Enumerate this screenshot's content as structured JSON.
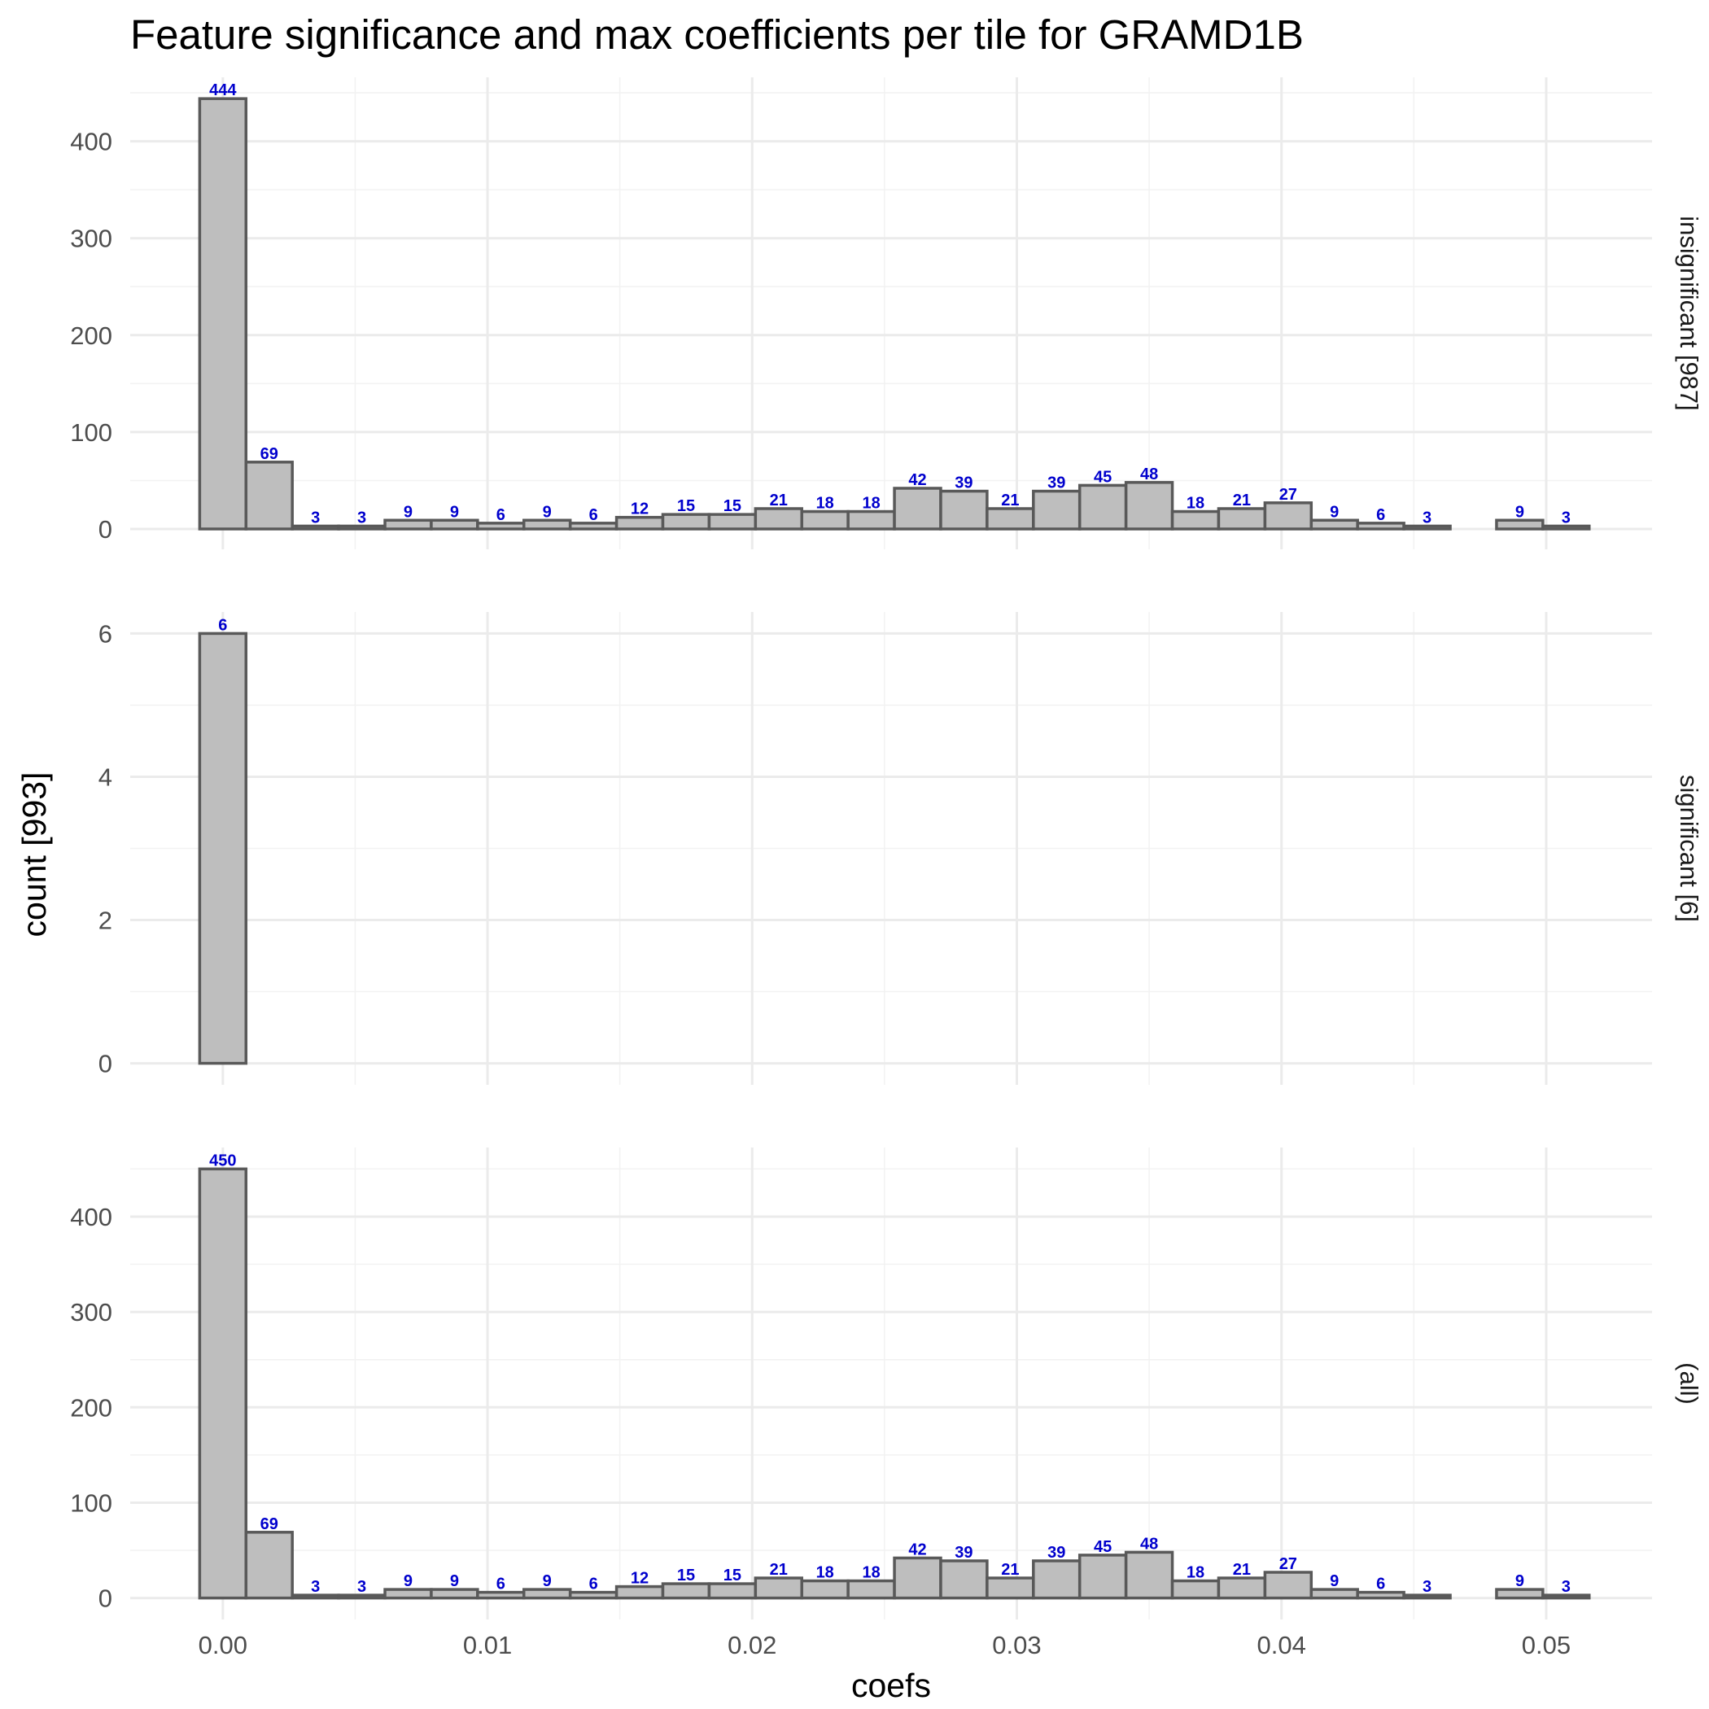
{
  "chart_data": {
    "type": "bar",
    "chart_kind": "histogram",
    "title": "Feature significance and max coefficients per tile for GRAMD1B",
    "xlabel": "coefs",
    "ylabel": "count [993]",
    "bin_width": 0.00175,
    "bin_centers": [
      0.0,
      0.00175,
      0.0035,
      0.00525,
      0.007,
      0.00875,
      0.0105,
      0.01225,
      0.014,
      0.01575,
      0.0175,
      0.01925,
      0.021,
      0.02275,
      0.0245,
      0.02625,
      0.028,
      0.02975,
      0.0315,
      0.03325,
      0.035,
      0.03675,
      0.0385,
      0.04025,
      0.042,
      0.04375,
      0.0455,
      0.04725,
      0.049,
      0.05075
    ],
    "xlim": [
      -0.0035,
      0.054
    ],
    "x_ticks": [
      0.0,
      0.01,
      0.02,
      0.03,
      0.04,
      0.05
    ],
    "x_tick_labels": [
      "0.00",
      "0.01",
      "0.02",
      "0.03",
      "0.04",
      "0.05"
    ],
    "bar_fill": "#bebebe",
    "bar_stroke": "#595959",
    "label_color": "#0000cd",
    "grid": true,
    "legend": "none",
    "facets": [
      {
        "strip_label": "insignificant [987]",
        "values": [
          444,
          69,
          3,
          3,
          9,
          9,
          6,
          9,
          6,
          12,
          15,
          15,
          21,
          18,
          18,
          42,
          39,
          21,
          39,
          45,
          48,
          18,
          21,
          27,
          9,
          6,
          3,
          0,
          9,
          3
        ],
        "ylim": [
          -21,
          466
        ],
        "y_ticks": [
          0,
          100,
          200,
          300,
          400
        ],
        "y_tick_labels": [
          "0",
          "100",
          "200",
          "300",
          "400"
        ]
      },
      {
        "strip_label": "significant [6]",
        "values": [
          6,
          0,
          0,
          0,
          0,
          0,
          0,
          0,
          0,
          0,
          0,
          0,
          0,
          0,
          0,
          0,
          0,
          0,
          0,
          0,
          0,
          0,
          0,
          0,
          0,
          0,
          0,
          0,
          0,
          0
        ],
        "ylim": [
          -0.3,
          6.3
        ],
        "y_ticks": [
          0,
          2,
          4,
          6
        ],
        "y_tick_labels": [
          "0",
          "2",
          "4",
          "6"
        ]
      },
      {
        "strip_label": "(all)",
        "values": [
          450,
          69,
          3,
          3,
          9,
          9,
          6,
          9,
          6,
          12,
          15,
          15,
          21,
          18,
          18,
          42,
          39,
          21,
          39,
          45,
          48,
          18,
          21,
          27,
          9,
          6,
          3,
          0,
          9,
          3
        ],
        "ylim": [
          -22.5,
          472.5
        ],
        "y_ticks": [
          0,
          100,
          200,
          300,
          400
        ],
        "y_tick_labels": [
          "0",
          "100",
          "200",
          "300",
          "400"
        ]
      }
    ]
  }
}
